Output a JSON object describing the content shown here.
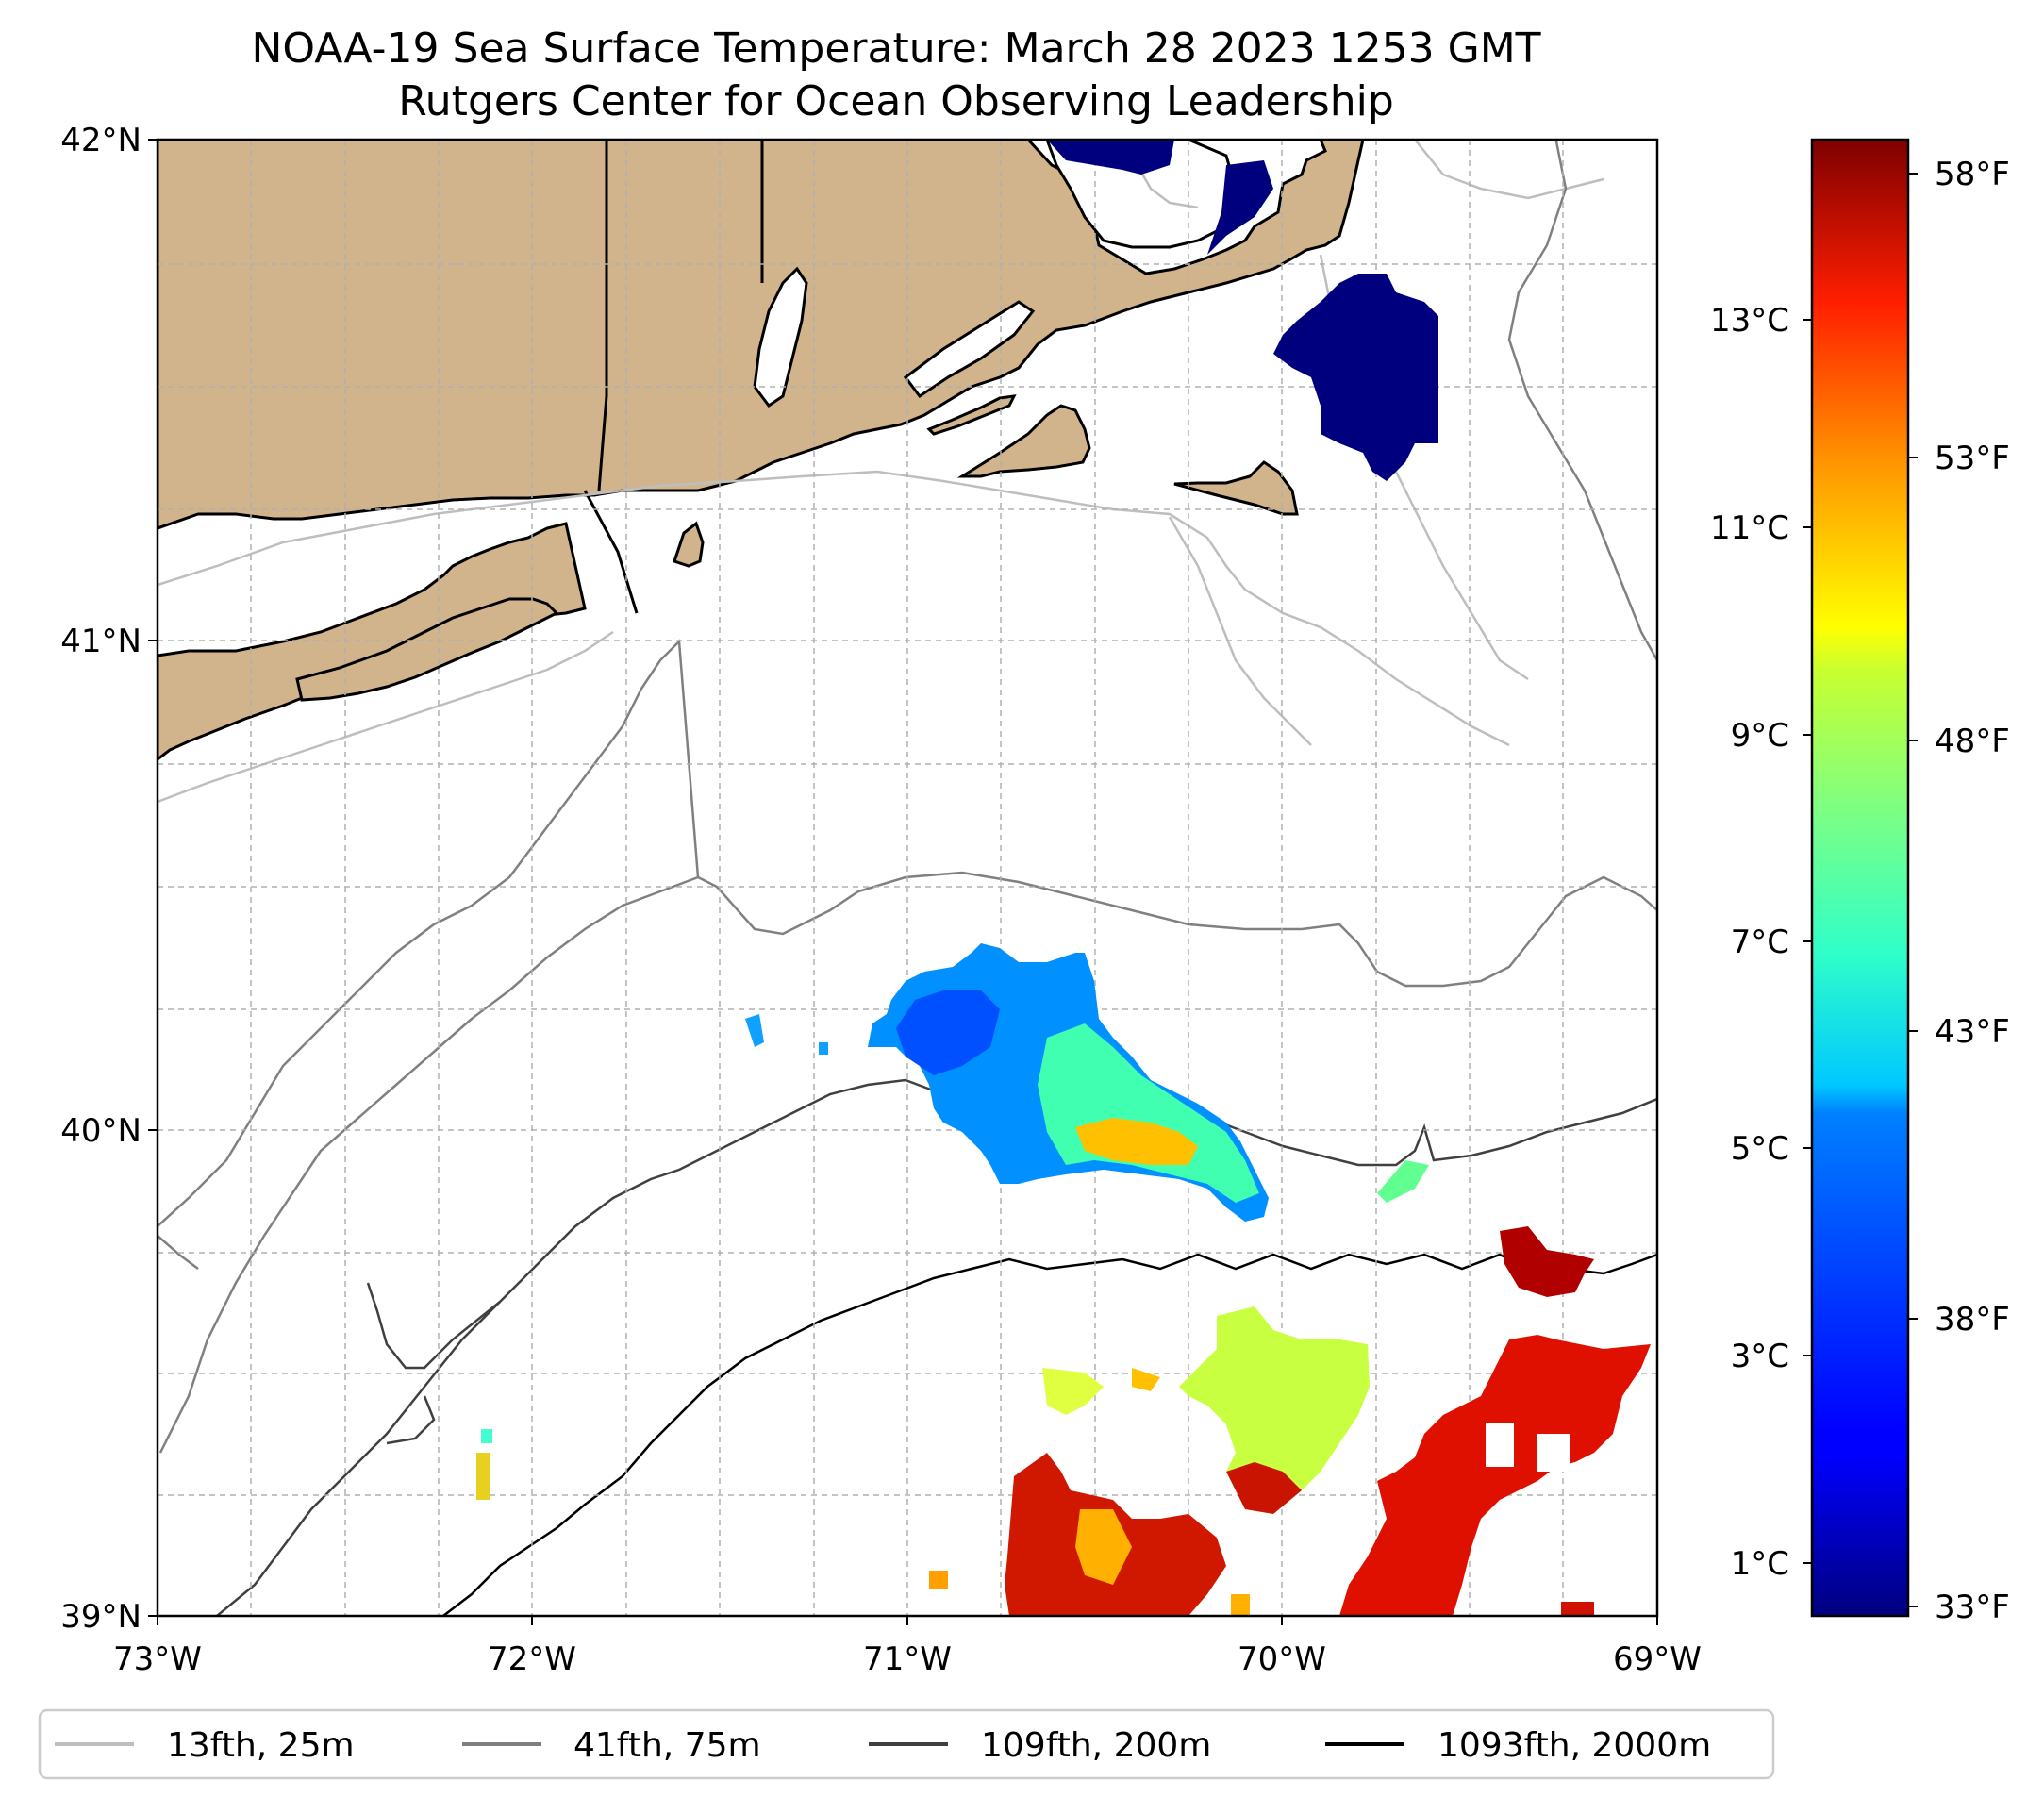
{
  "title": "NOAA-19 Sea Surface Temperature: March 28 2023 1253 GMT",
  "subtitle": "Rutgers Center for Ocean Observing Leadership",
  "map": {
    "extent": {
      "lon": [
        -73,
        -69
      ],
      "lat": [
        39,
        42
      ]
    },
    "gridlines": true,
    "land_color": "#d2b48c",
    "lat_ticks": [
      "42°N",
      "41°N",
      "40°N",
      "39°N"
    ],
    "lon_ticks": [
      "73°W",
      "72°W",
      "71°W",
      "70°W",
      "69°W"
    ]
  },
  "colorbar": {
    "colormap": "jet",
    "range_f": [
      33,
      59
    ],
    "celsius_ticks": [
      "13°C",
      "11°C",
      "9°C",
      "7°C",
      "5°C",
      "3°C",
      "1°C"
    ],
    "fahrenheit_ticks": [
      "58°F",
      "53°F",
      "48°F",
      "43°F",
      "38°F",
      "33°F"
    ]
  },
  "legend": {
    "position": "bottom",
    "entries": [
      {
        "label": "13fth, 25m",
        "color": "#bebebe"
      },
      {
        "label": "41fth, 75m",
        "color": "#808080"
      },
      {
        "label": "109fth, 200m",
        "color": "#404040"
      },
      {
        "label": "1093fth, 2000m",
        "color": "#000000"
      }
    ]
  }
}
